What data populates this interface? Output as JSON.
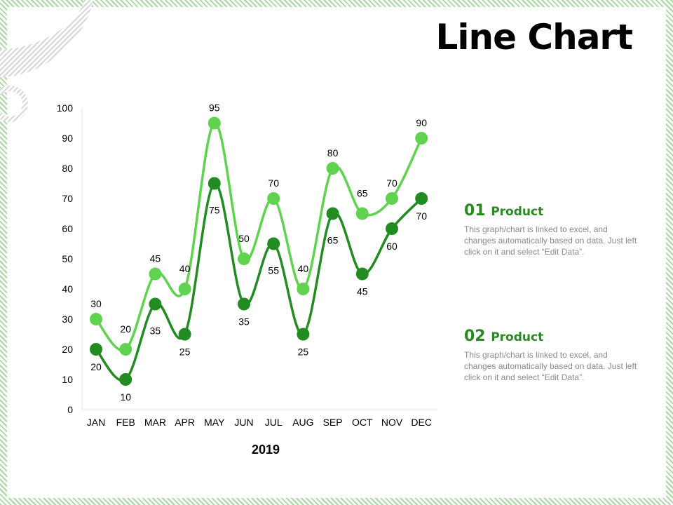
{
  "title": "Line Chart",
  "colors": {
    "series1": "#5fd34f",
    "series2": "#228b22",
    "accent": "#2a8a22",
    "frame": "#a9d7a3"
  },
  "chart_data": {
    "type": "line",
    "categories": [
      "JAN",
      "FEB",
      "MAR",
      "APR",
      "MAY",
      "JUN",
      "JUL",
      "AUG",
      "SEP",
      "OCT",
      "NOV",
      "DEC"
    ],
    "series": [
      {
        "name": "01 Product",
        "values": [
          30,
          20,
          45,
          40,
          95,
          50,
          70,
          40,
          80,
          65,
          70,
          90
        ]
      },
      {
        "name": "02 Product",
        "values": [
          20,
          10,
          35,
          25,
          75,
          35,
          55,
          25,
          65,
          45,
          60,
          70
        ]
      }
    ],
    "xlabel": "2019",
    "ylabel": "",
    "ylim": [
      0,
      100
    ],
    "yticks": [
      0,
      10,
      20,
      30,
      40,
      50,
      60,
      70,
      80,
      90,
      100
    ],
    "grid": false,
    "data_labels": true
  },
  "legend": [
    {
      "number": "01",
      "name": "Product",
      "description": "This graph/chart is linked to excel, and changes automatically based on data. Just left click on it and select “Edit Data”."
    },
    {
      "number": "02",
      "name": "Product",
      "description": "This graph/chart is linked to excel, and changes automatically based on data. Just left click on it and select “Edit Data”."
    }
  ]
}
